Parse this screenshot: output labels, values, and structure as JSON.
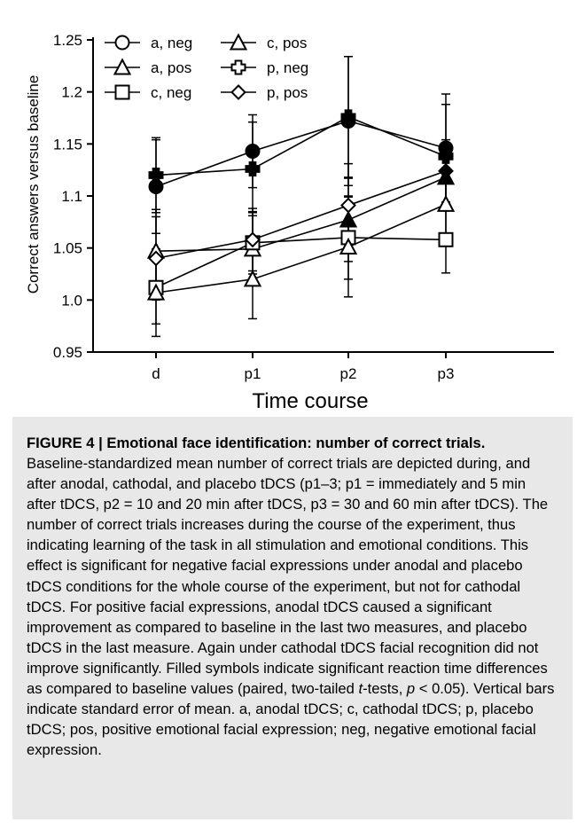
{
  "chart_data": {
    "type": "line",
    "categories": [
      "d",
      "p1",
      "p2",
      "p3"
    ],
    "xlabel": "Time course",
    "ylabel": "Correct answers versus baseline",
    "ylim": [
      0.95,
      1.25
    ],
    "yticks": [
      "0.95",
      "1.0",
      "1.05",
      "1.1",
      "1.15",
      "1.2",
      "1.25"
    ],
    "grid": false,
    "legend_position": "top-left",
    "series": [
      {
        "name": "a, neg",
        "marker": "circle",
        "values": [
          1.109,
          1.143,
          1.172,
          1.146
        ],
        "errors": [
          0.045,
          0.035,
          0.062,
          0.052
        ],
        "filled": [
          true,
          true,
          true,
          true
        ]
      },
      {
        "name": "a, pos",
        "marker": "triangle",
        "values": [
          1.047,
          1.049,
          1.077,
          1.118
        ],
        "errors": [
          0.04,
          0.035,
          0.04,
          0.03
        ],
        "filled": [
          false,
          false,
          true,
          true
        ]
      },
      {
        "name": "c, neg",
        "marker": "square",
        "values": [
          1.012,
          1.055,
          1.06,
          1.058
        ],
        "errors": [
          0.035,
          0.03,
          0.04,
          0.032
        ],
        "filled": [
          false,
          false,
          false,
          false
        ]
      },
      {
        "name": "c, pos",
        "marker": "triangle",
        "values": [
          1.007,
          1.02,
          1.051,
          1.092
        ],
        "errors": [
          0.042,
          0.038,
          0.048,
          0.035
        ],
        "filled": [
          false,
          false,
          false,
          false
        ]
      },
      {
        "name": "p, neg",
        "marker": "cross",
        "values": [
          1.12,
          1.126,
          1.176,
          1.138
        ],
        "errors": [
          0.036,
          0.045,
          0.058,
          0.05
        ],
        "filled": [
          true,
          true,
          true,
          true
        ]
      },
      {
        "name": "p, pos",
        "marker": "diamond",
        "values": [
          1.04,
          1.058,
          1.091,
          1.124
        ],
        "errors": [
          0.04,
          0.03,
          0.04,
          0.03
        ],
        "filled": [
          false,
          false,
          false,
          true
        ]
      }
    ]
  },
  "caption": {
    "title": "FIGURE 4 | Emotional face identification: number of correct trials",
    "title_end": ".",
    "body_1": "Baseline-standardized mean number of correct trials are depicted during, and after anodal, cathodal, and placebo tDCS (p1–3; p1 = immediately and 5 min after tDCS, p2 = 10 and 20 min after tDCS, p3 = 30 and 60 min after tDCS). The number of correct trials increases during the course of the experiment, thus indicating learning of the task in all stimulation and emotional conditions. This effect is significant for negative facial expressions under anodal and placebo tDCS conditions for the whole course of the experiment, but not for cathodal tDCS. For positive facial expressions, anodal tDCS caused a significant improvement as compared to baseline in the last two measures, and placebo tDCS in the last measure. Again under cathodal tDCS facial recognition did not improve significantly. Filled symbols indicate significant reaction time differences as compared to baseline values (paired, two-tailed ",
    "body_t": "t",
    "body_2": "-tests, ",
    "body_p": "p",
    "body_3": " < 0.05). Vertical bars indicate standard error of mean. a, anodal tDCS; c, cathodal tDCS; p, placebo tDCS; pos, positive emotional facial expression; neg, negative emotional facial expression."
  }
}
